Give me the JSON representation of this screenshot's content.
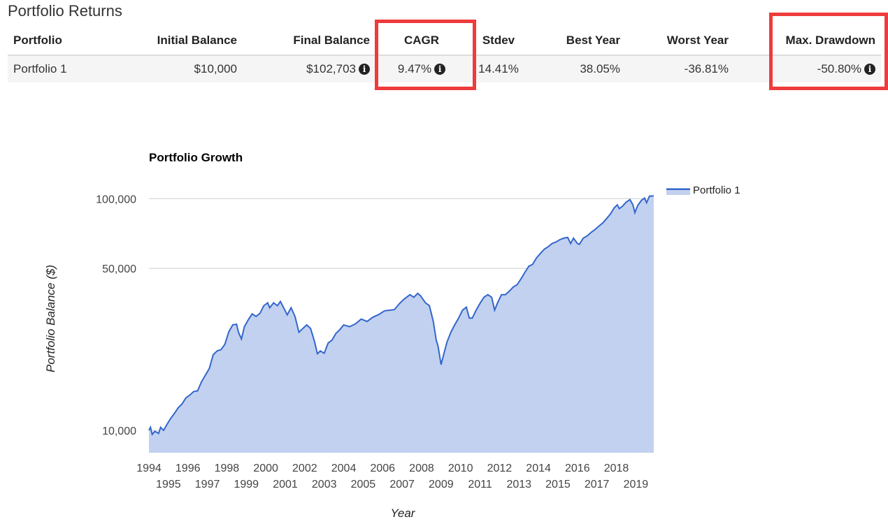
{
  "section_title": "Portfolio Returns",
  "table": {
    "headers": [
      "Portfolio",
      "Initial Balance",
      "Final Balance",
      "CAGR",
      "Stdev",
      "Best Year",
      "Worst Year",
      "Max. Drawdown"
    ],
    "row": {
      "portfolio": "Portfolio 1",
      "initial_balance": "$10,000",
      "final_balance": "$102,703",
      "cagr": "9.47%",
      "stdev": "14.41%",
      "best_year": "38.05%",
      "worst_year": "-36.81%",
      "max_drawdown": "-50.80%"
    }
  },
  "highlight_color": "#ee3b3b",
  "chart_data": {
    "type": "area",
    "title": "Portfolio Growth",
    "xlabel": "Year",
    "ylabel": "Portfolio Balance ($)",
    "y_scale": "log",
    "ylim": [
      8000,
      120000
    ],
    "xlim": [
      1994.0,
      2019.92
    ],
    "y_ticks": [
      10000,
      50000,
      100000
    ],
    "y_tick_labels": [
      "10,000",
      "50,000",
      "100,000"
    ],
    "x_tick_labels": [
      "1994",
      "1995",
      "1996",
      "1997",
      "1998",
      "1999",
      "2000",
      "2001",
      "2002",
      "2003",
      "2004",
      "2005",
      "2006",
      "2007",
      "2008",
      "2009",
      "2010",
      "2011",
      "2012",
      "2013",
      "2014",
      "2015",
      "2016",
      "2017",
      "2018",
      "2019"
    ],
    "grid": true,
    "legend_position": "top-right",
    "line_color": "#3366cc",
    "fill_color": "#c2d1ef",
    "series": [
      {
        "name": "Portfolio 1",
        "x": [
          1994.0,
          1994.08,
          1994.17,
          1994.3,
          1994.5,
          1994.6,
          1994.75,
          1994.9,
          1995.1,
          1995.3,
          1995.5,
          1995.7,
          1995.9,
          1996.1,
          1996.3,
          1996.5,
          1996.7,
          1996.9,
          1997.1,
          1997.3,
          1997.5,
          1997.7,
          1997.9,
          1998.1,
          1998.3,
          1998.5,
          1998.6,
          1998.75,
          1998.9,
          1999.1,
          1999.3,
          1999.5,
          1999.7,
          1999.9,
          2000.1,
          2000.2,
          2000.4,
          2000.6,
          2000.75,
          2000.9,
          2001.1,
          2001.3,
          2001.5,
          2001.7,
          2001.9,
          2002.1,
          2002.3,
          2002.5,
          2002.65,
          2002.8,
          2003.0,
          2003.2,
          2003.4,
          2003.6,
          2003.8,
          2004.0,
          2004.3,
          2004.6,
          2004.9,
          2005.2,
          2005.5,
          2005.8,
          2006.1,
          2006.4,
          2006.6,
          2006.9,
          2007.1,
          2007.4,
          2007.6,
          2007.8,
          2007.95,
          2008.2,
          2008.4,
          2008.6,
          2008.75,
          2008.85,
          2009.0,
          2009.15,
          2009.3,
          2009.5,
          2009.7,
          2009.9,
          2010.1,
          2010.3,
          2010.45,
          2010.6,
          2010.8,
          2011.0,
          2011.2,
          2011.4,
          2011.6,
          2011.75,
          2011.9,
          2012.1,
          2012.3,
          2012.5,
          2012.7,
          2012.9,
          2013.1,
          2013.3,
          2013.5,
          2013.7,
          2013.9,
          2014.1,
          2014.3,
          2014.5,
          2014.7,
          2014.9,
          2015.1,
          2015.3,
          2015.5,
          2015.65,
          2015.8,
          2016.0,
          2016.1,
          2016.3,
          2016.5,
          2016.7,
          2016.9,
          2017.1,
          2017.3,
          2017.5,
          2017.7,
          2017.9,
          2018.05,
          2018.15,
          2018.3,
          2018.5,
          2018.7,
          2018.85,
          2018.95,
          2019.1,
          2019.3,
          2019.45,
          2019.55,
          2019.7,
          2019.92
        ],
        "values": [
          10000,
          10300,
          9600,
          9900,
          9700,
          10300,
          10000,
          10500,
          11200,
          11800,
          12500,
          13000,
          13800,
          14200,
          14700,
          14800,
          16200,
          17300,
          18500,
          21200,
          22000,
          22300,
          23500,
          26600,
          28500,
          28700,
          26500,
          24800,
          28000,
          30000,
          31800,
          31000,
          32000,
          34500,
          35500,
          33800,
          35500,
          34500,
          36000,
          34000,
          31500,
          33800,
          31000,
          26500,
          27500,
          28500,
          27500,
          24200,
          21400,
          22000,
          21500,
          23800,
          24500,
          26200,
          27200,
          28500,
          28000,
          28800,
          30200,
          29500,
          30800,
          31600,
          32800,
          33000,
          33200,
          35500,
          36800,
          38500,
          37500,
          39000,
          38000,
          35500,
          34500,
          29500,
          24500,
          23000,
          19200,
          21500,
          24000,
          26500,
          28500,
          30500,
          33000,
          34000,
          30500,
          30500,
          33000,
          35300,
          37500,
          38500,
          37500,
          33000,
          35500,
          38500,
          38500,
          39800,
          41500,
          42500,
          45000,
          48000,
          51000,
          52000,
          55500,
          58000,
          60500,
          62000,
          64000,
          65000,
          66500,
          67500,
          68000,
          64000,
          67500,
          64000,
          63500,
          67500,
          69000,
          71500,
          73500,
          76000,
          78500,
          82000,
          86000,
          91500,
          94000,
          90500,
          92500,
          96500,
          99000,
          94000,
          87000,
          93500,
          98500,
          100500,
          96000,
          102500,
          102703
        ]
      }
    ]
  }
}
